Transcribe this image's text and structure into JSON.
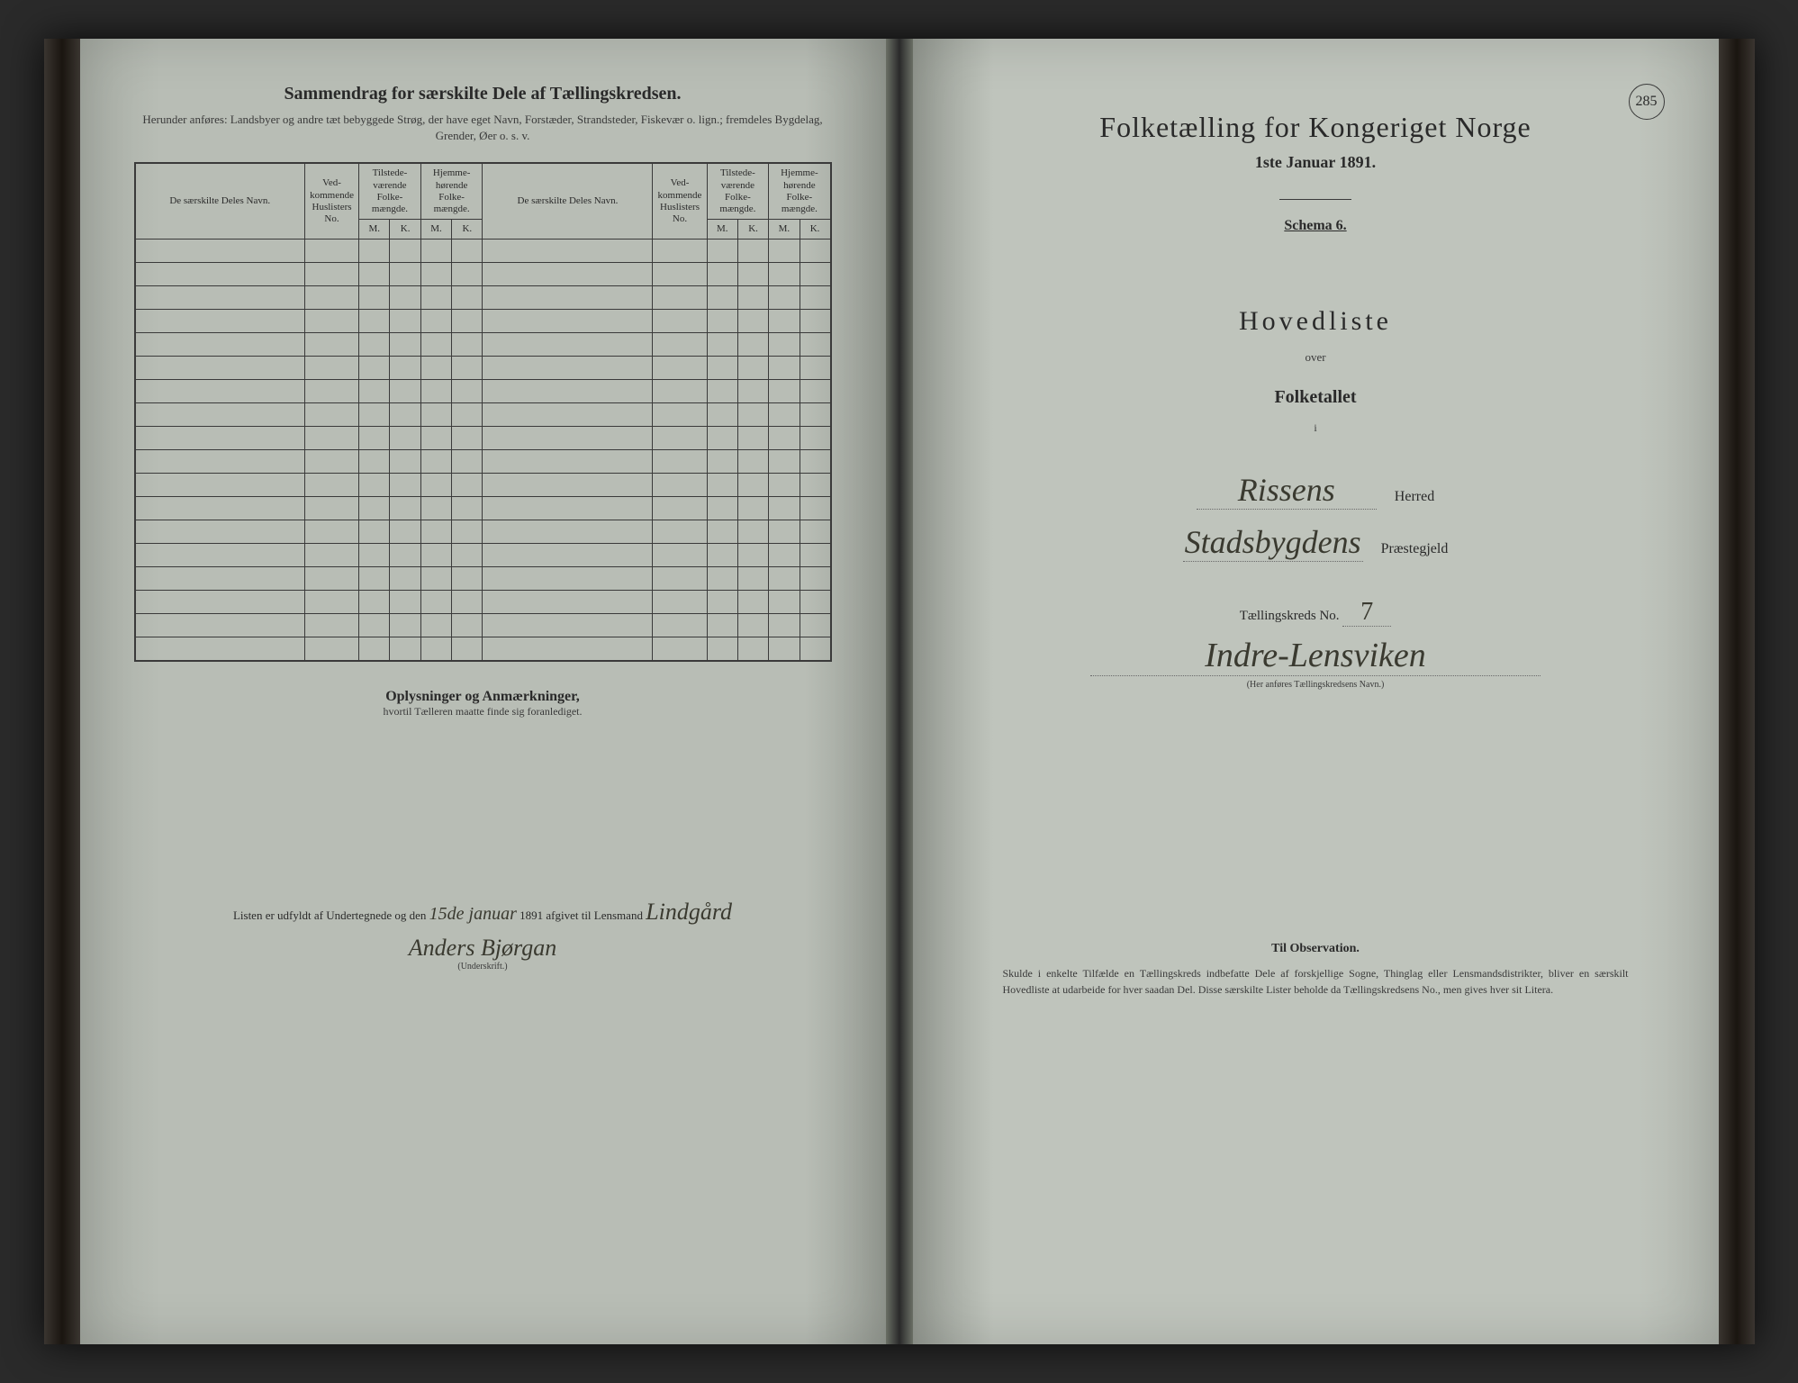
{
  "colors": {
    "page_bg": "#b8bdb5",
    "text": "#2a2a2a",
    "ink": "#3a3a30",
    "border": "#3a3a3a"
  },
  "left": {
    "title": "Sammendrag for særskilte Dele af Tællingskredsen.",
    "subtitle": "Herunder anføres: Landsbyer og andre tæt bebyggede Strøg, der have eget Navn, Forstæder, Strandsteder, Fiskevær o. lign.; fremdeles Bygdelag, Grender, Øer o. s. v.",
    "table": {
      "headers": {
        "name": "De særskilte Deles Navn.",
        "no": "Ved-kommende Huslisters No.",
        "present": "Tilstede-værende Folke-mængde.",
        "resident": "Hjemme-hørende Folke-mængde.",
        "m": "M.",
        "k": "K."
      },
      "blank_rows": 18
    },
    "remarks_title": "Oplysninger og Anmærkninger,",
    "remarks_sub": "hvortil Tælleren maatte finde sig foranlediget.",
    "signature_prefix": "Listen er udfyldt af Undertegnede og den",
    "signature_date": "15de januar",
    "signature_year": "1891 afgivet til Lensmand",
    "lensmand": "Lindgård",
    "signer": "Anders Bjørgan",
    "underskrift": "(Underskrift.)"
  },
  "right": {
    "page_no": "285",
    "main_title": "Folketælling for Kongeriget Norge",
    "date": "1ste Januar 1891.",
    "schema": "Schema 6.",
    "hovedliste": "Hovedliste",
    "over": "over",
    "folketallet": "Folketallet",
    "i": "i",
    "herred_hw": "Rissens",
    "herred_label": "Herred",
    "prestegjeld_hw": "Stadsbygdens",
    "prestegjeld_label": "Præstegjeld",
    "kreds_label": "Tællingskreds No.",
    "kreds_no": "7",
    "region_hw": "Indre-Lensviken",
    "region_note": "(Her anføres Tællingskredsens Navn.)",
    "obs_title": "Til Observation.",
    "obs_text": "Skulde i enkelte Tilfælde en Tællingskreds indbefatte Dele af forskjellige Sogne, Thinglag eller Lensmandsdistrikter, bliver en særskilt Hovedliste at udarbeide for hver saadan Del. Disse særskilte Lister beholde da Tællingskredsens No., men gives hver sit Litera."
  }
}
